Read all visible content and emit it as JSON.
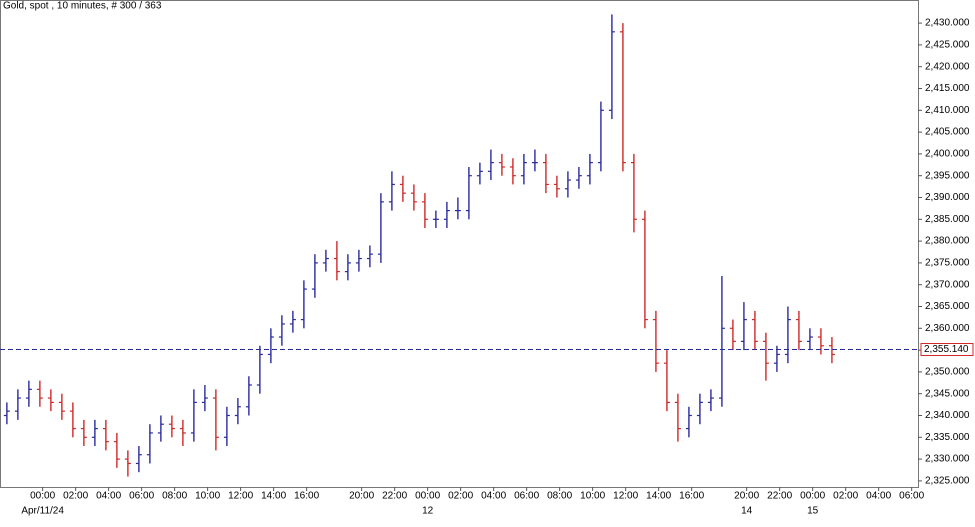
{
  "chart_data": {
    "type": "ohlc",
    "title": "Gold, spot , 10 minutes, # 300 / 363",
    "up_color": "#2a2aa0",
    "down_color": "#d02828",
    "x": [
      0,
      4,
      8,
      12,
      16,
      20,
      24,
      28,
      32,
      36,
      40,
      44,
      48,
      52,
      56,
      60,
      64,
      68,
      72,
      76,
      80,
      84,
      88,
      92,
      96,
      100,
      104,
      108,
      112,
      116,
      120,
      124,
      128,
      132,
      136,
      140,
      144,
      148,
      152,
      156,
      160,
      164,
      168,
      172,
      176,
      180,
      184,
      188,
      192,
      196,
      200,
      204,
      208,
      212,
      216,
      220,
      224,
      228,
      232,
      236,
      240,
      244,
      248,
      252,
      256,
      260,
      264,
      268,
      272,
      276,
      280,
      284,
      288,
      292,
      296,
      300
    ],
    "open": [
      2340,
      2341,
      2344,
      2346,
      2344,
      2343,
      2341,
      2337,
      2335,
      2337,
      2334,
      2330,
      2329,
      2331,
      2336,
      2338,
      2337,
      2336,
      2343,
      2344,
      2335,
      2340,
      2342,
      2347,
      2354,
      2358,
      2361,
      2362,
      2369,
      2375,
      2376,
      2373,
      2375,
      2376,
      2377,
      2389,
      2393,
      2391,
      2389,
      2385,
      2385,
      2387,
      2387,
      2395,
      2396,
      2398,
      2397,
      2395,
      2398,
      2398,
      2393,
      2392,
      2394,
      2395,
      2398,
      2410,
      2428,
      2398,
      2385,
      2362,
      2352,
      2343,
      2337,
      2340,
      2343,
      2344,
      2360,
      2357,
      2362,
      2357,
      2352,
      2354,
      2362,
      2357,
      2358,
      2356
    ],
    "high": [
      2343,
      2346,
      2348,
      2348,
      2346,
      2345,
      2343,
      2339,
      2339,
      2339,
      2336,
      2332,
      2333,
      2338,
      2340,
      2340,
      2339,
      2346,
      2347,
      2346,
      2342,
      2344,
      2349,
      2356,
      2360,
      2363,
      2364,
      2371,
      2377,
      2378,
      2380,
      2377,
      2378,
      2379,
      2391,
      2396,
      2395,
      2393,
      2391,
      2387,
      2389,
      2390,
      2397,
      2398,
      2401,
      2400,
      2399,
      2400,
      2401,
      2400,
      2395,
      2396,
      2397,
      2400,
      2412,
      2432,
      2430,
      2400,
      2387,
      2364,
      2355,
      2345,
      2342,
      2345,
      2346,
      2372,
      2362,
      2366,
      2364,
      2359,
      2356,
      2365,
      2364,
      2360,
      2360,
      2358
    ],
    "low": [
      2338,
      2339,
      2342,
      2342,
      2341,
      2339,
      2335,
      2333,
      2333,
      2332,
      2328,
      2326,
      2327,
      2329,
      2334,
      2335,
      2333,
      2334,
      2341,
      2332,
      2333,
      2338,
      2340,
      2345,
      2352,
      2356,
      2359,
      2360,
      2367,
      2373,
      2371,
      2371,
      2373,
      2374,
      2375,
      2387,
      2389,
      2387,
      2383,
      2383,
      2383,
      2385,
      2385,
      2393,
      2394,
      2395,
      2393,
      2393,
      2396,
      2391,
      2390,
      2390,
      2392,
      2393,
      2396,
      2408,
      2396,
      2382,
      2360,
      2350,
      2341,
      2334,
      2335,
      2338,
      2341,
      2342,
      2355,
      2355,
      2355,
      2348,
      2350,
      2352,
      2355,
      2355,
      2354,
      2352
    ],
    "close": [
      2341,
      2344,
      2346,
      2344,
      2343,
      2341,
      2337,
      2335,
      2337,
      2334,
      2330,
      2329,
      2331,
      2336,
      2338,
      2337,
      2336,
      2343,
      2344,
      2335,
      2340,
      2342,
      2347,
      2354,
      2358,
      2361,
      2362,
      2369,
      2375,
      2376,
      2373,
      2375,
      2376,
      2377,
      2389,
      2393,
      2391,
      2389,
      2385,
      2385,
      2387,
      2387,
      2395,
      2396,
      2398,
      2397,
      2395,
      2398,
      2398,
      2393,
      2392,
      2394,
      2395,
      2398,
      2410,
      2428,
      2398,
      2385,
      2362,
      2352,
      2343,
      2337,
      2340,
      2343,
      2344,
      2360,
      2357,
      2362,
      2357,
      2352,
      2354,
      2362,
      2357,
      2358,
      2356,
      2354
    ],
    "xlim": [
      -2.5,
      331.3
    ],
    "ylim": [
      2323.6,
      2435.3
    ],
    "xticks": [
      {
        "value": 13,
        "label": "00:00"
      },
      {
        "value": 25,
        "label": "02:00"
      },
      {
        "value": 37,
        "label": "04:00"
      },
      {
        "value": 49,
        "label": "06:00"
      },
      {
        "value": 61,
        "label": "08:00"
      },
      {
        "value": 73,
        "label": "10:00"
      },
      {
        "value": 85,
        "label": "12:00"
      },
      {
        "value": 97,
        "label": "14:00"
      },
      {
        "value": 109,
        "label": "16:00"
      },
      {
        "value": 129,
        "label": "20:00"
      },
      {
        "value": 141,
        "label": "22:00"
      },
      {
        "value": 153,
        "label": "00:00"
      },
      {
        "value": 165,
        "label": "02:00"
      },
      {
        "value": 177,
        "label": "04:00"
      },
      {
        "value": 189,
        "label": "06:00"
      },
      {
        "value": 201,
        "label": "08:00"
      },
      {
        "value": 213,
        "label": "10:00"
      },
      {
        "value": 225,
        "label": "12:00"
      },
      {
        "value": 237,
        "label": "14:00"
      },
      {
        "value": 249,
        "label": "16:00"
      },
      {
        "value": 269,
        "label": "20:00"
      },
      {
        "value": 281,
        "label": "22:00"
      },
      {
        "value": 293,
        "label": "00:00"
      },
      {
        "value": 305,
        "label": "02:00"
      },
      {
        "value": 317,
        "label": "04:00"
      },
      {
        "value": 329,
        "label": "06:00"
      }
    ],
    "date_labels": [
      {
        "value": 13,
        "label": "Apr/11/24"
      },
      {
        "value": 153,
        "label": "12"
      },
      {
        "value": 269,
        "label": "14"
      },
      {
        "value": 293,
        "label": "15"
      }
    ],
    "yticks": [
      {
        "value": 2325,
        "label": "2,325.000"
      },
      {
        "value": 2330,
        "label": "2,330.000"
      },
      {
        "value": 2335,
        "label": "2,335.000"
      },
      {
        "value": 2340,
        "label": "2,340.000"
      },
      {
        "value": 2345,
        "label": "2,345.000"
      },
      {
        "value": 2350,
        "label": "2,350.000"
      },
      {
        "value": 2355,
        "label": "2,355.000"
      },
      {
        "value": 2360,
        "label": "2,360.000"
      },
      {
        "value": 2365,
        "label": "2,365.000"
      },
      {
        "value": 2370,
        "label": "2,370.000"
      },
      {
        "value": 2375,
        "label": "2,375.000"
      },
      {
        "value": 2380,
        "label": "2,380.000"
      },
      {
        "value": 2385,
        "label": "2,385.000"
      },
      {
        "value": 2390,
        "label": "2,390.000"
      },
      {
        "value": 2395,
        "label": "2,395.000"
      },
      {
        "value": 2400,
        "label": "2,400.000"
      },
      {
        "value": 2405,
        "label": "2,405.000"
      },
      {
        "value": 2410,
        "label": "2,410.000"
      },
      {
        "value": 2415,
        "label": "2,415.000"
      },
      {
        "value": 2420,
        "label": "2,420.000"
      },
      {
        "value": 2425,
        "label": "2,425.000"
      },
      {
        "value": 2430,
        "label": "2,430.000"
      }
    ],
    "last_price": {
      "value": 2355.14,
      "label": "2,355.140"
    },
    "last_price_color": "#2a2aa0"
  }
}
